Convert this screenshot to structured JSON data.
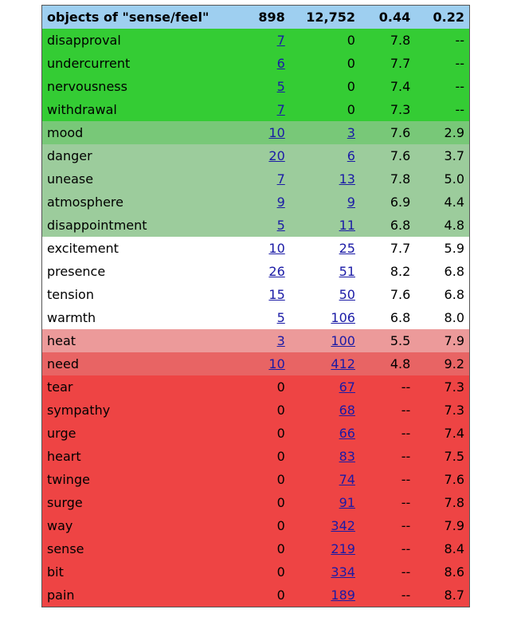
{
  "header": {
    "title": "objects of \"sense/feel\"",
    "total_a": "898",
    "total_b": "12,752",
    "score_a": "0.44",
    "score_b": "0.22"
  },
  "colors": {
    "header": "#9ecff0",
    "strong_a": "#34cc34",
    "medium_a": "#78c878",
    "light_a": "#9ccc9c",
    "neutral": "#ffffff",
    "light_b": "#ec9a9a",
    "medium_b": "#e86464",
    "strong_b": "#ee4444"
  },
  "rows": [
    {
      "word": "disapproval",
      "count_a": "7",
      "link_a": true,
      "count_b": "0",
      "link_b": false,
      "score_a": "7.8",
      "score_b": "--",
      "band": "strong_a"
    },
    {
      "word": "undercurrent",
      "count_a": "6",
      "link_a": true,
      "count_b": "0",
      "link_b": false,
      "score_a": "7.7",
      "score_b": "--",
      "band": "strong_a"
    },
    {
      "word": "nervousness",
      "count_a": "5",
      "link_a": true,
      "count_b": "0",
      "link_b": false,
      "score_a": "7.4",
      "score_b": "--",
      "band": "strong_a"
    },
    {
      "word": "withdrawal",
      "count_a": "7",
      "link_a": true,
      "count_b": "0",
      "link_b": false,
      "score_a": "7.3",
      "score_b": "--",
      "band": "strong_a"
    },
    {
      "word": "mood",
      "count_a": "10",
      "link_a": true,
      "count_b": "3",
      "link_b": true,
      "score_a": "7.6",
      "score_b": "2.9",
      "band": "medium_a"
    },
    {
      "word": "danger",
      "count_a": "20",
      "link_a": true,
      "count_b": "6",
      "link_b": true,
      "score_a": "7.6",
      "score_b": "3.7",
      "band": "light_a"
    },
    {
      "word": "unease",
      "count_a": "7",
      "link_a": true,
      "count_b": "13",
      "link_b": true,
      "score_a": "7.8",
      "score_b": "5.0",
      "band": "light_a"
    },
    {
      "word": "atmosphere",
      "count_a": "9",
      "link_a": true,
      "count_b": "9",
      "link_b": true,
      "score_a": "6.9",
      "score_b": "4.4",
      "band": "light_a"
    },
    {
      "word": "disappointment",
      "count_a": "5",
      "link_a": true,
      "count_b": "11",
      "link_b": true,
      "score_a": "6.8",
      "score_b": "4.8",
      "band": "light_a"
    },
    {
      "word": "excitement",
      "count_a": "10",
      "link_a": true,
      "count_b": "25",
      "link_b": true,
      "score_a": "7.7",
      "score_b": "5.9",
      "band": "neutral"
    },
    {
      "word": "presence",
      "count_a": "26",
      "link_a": true,
      "count_b": "51",
      "link_b": true,
      "score_a": "8.2",
      "score_b": "6.8",
      "band": "neutral"
    },
    {
      "word": "tension",
      "count_a": "15",
      "link_a": true,
      "count_b": "50",
      "link_b": true,
      "score_a": "7.6",
      "score_b": "6.8",
      "band": "neutral"
    },
    {
      "word": "warmth",
      "count_a": "5",
      "link_a": true,
      "count_b": "106",
      "link_b": true,
      "score_a": "6.8",
      "score_b": "8.0",
      "band": "neutral"
    },
    {
      "word": "heat",
      "count_a": "3",
      "link_a": true,
      "count_b": "100",
      "link_b": true,
      "score_a": "5.5",
      "score_b": "7.9",
      "band": "light_b"
    },
    {
      "word": "need",
      "count_a": "10",
      "link_a": true,
      "count_b": "412",
      "link_b": true,
      "score_a": "4.8",
      "score_b": "9.2",
      "band": "medium_b"
    },
    {
      "word": "tear",
      "count_a": "0",
      "link_a": false,
      "count_b": "67",
      "link_b": true,
      "score_a": "--",
      "score_b": "7.3",
      "band": "strong_b"
    },
    {
      "word": "sympathy",
      "count_a": "0",
      "link_a": false,
      "count_b": "68",
      "link_b": true,
      "score_a": "--",
      "score_b": "7.3",
      "band": "strong_b"
    },
    {
      "word": "urge",
      "count_a": "0",
      "link_a": false,
      "count_b": "66",
      "link_b": true,
      "score_a": "--",
      "score_b": "7.4",
      "band": "strong_b"
    },
    {
      "word": "heart",
      "count_a": "0",
      "link_a": false,
      "count_b": "83",
      "link_b": true,
      "score_a": "--",
      "score_b": "7.5",
      "band": "strong_b"
    },
    {
      "word": "twinge",
      "count_a": "0",
      "link_a": false,
      "count_b": "74",
      "link_b": true,
      "score_a": "--",
      "score_b": "7.6",
      "band": "strong_b"
    },
    {
      "word": "surge",
      "count_a": "0",
      "link_a": false,
      "count_b": "91",
      "link_b": true,
      "score_a": "--",
      "score_b": "7.8",
      "band": "strong_b"
    },
    {
      "word": "way",
      "count_a": "0",
      "link_a": false,
      "count_b": "342",
      "link_b": true,
      "score_a": "--",
      "score_b": "7.9",
      "band": "strong_b"
    },
    {
      "word": "sense",
      "count_a": "0",
      "link_a": false,
      "count_b": "219",
      "link_b": true,
      "score_a": "--",
      "score_b": "8.4",
      "band": "strong_b"
    },
    {
      "word": "bit",
      "count_a": "0",
      "link_a": false,
      "count_b": "334",
      "link_b": true,
      "score_a": "--",
      "score_b": "8.6",
      "band": "strong_b"
    },
    {
      "word": "pain",
      "count_a": "0",
      "link_a": false,
      "count_b": "189",
      "link_b": true,
      "score_a": "--",
      "score_b": "8.7",
      "band": "strong_b"
    }
  ]
}
